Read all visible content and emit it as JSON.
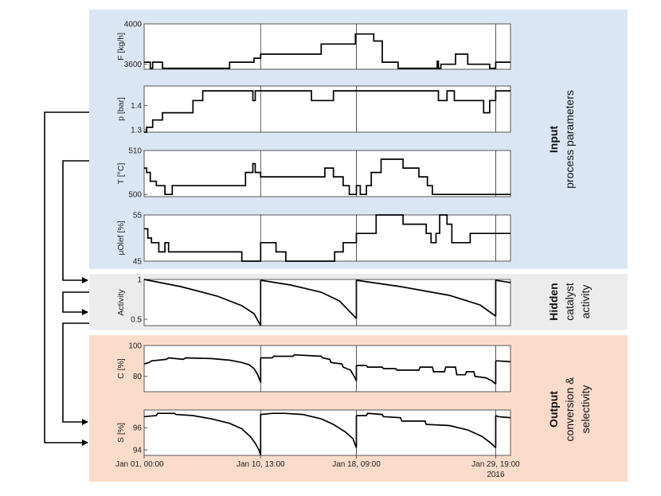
{
  "colors": {
    "input_bg": "#dbe6f4",
    "hidden_bg": "#ececec",
    "output_bg": "#fbdccb",
    "line": "#000000"
  },
  "x_markers": [
    "Jan 10, 13:00",
    "Jan 18, 09:00",
    "Jan 29, 19:00"
  ],
  "x_axis": {
    "domain": [
      0,
      30
    ],
    "tick_labels": [
      {
        "label": "Jan 01, 00:00",
        "day": 0
      },
      {
        "label": "Jan 10, 13:00",
        "day": 9.54
      },
      {
        "label": "Jan 18, 09:00",
        "day": 17.38
      },
      {
        "label": "Jan 29, 19:00",
        "day": 28.79
      }
    ],
    "year_label": "2016"
  },
  "groups": [
    {
      "id": "input",
      "title": "Input",
      "subtitle_lines": [
        "process parameters"
      ]
    },
    {
      "id": "hidden",
      "title": "Hidden",
      "subtitle_lines": [
        "catalyst",
        "activity"
      ]
    },
    {
      "id": "output",
      "title": "Output",
      "subtitle_lines": [
        "conversion &",
        "selectivity"
      ]
    }
  ],
  "chart_data": [
    {
      "type": "line",
      "id": "F",
      "group": "input",
      "ylabel": "F [kg/h]",
      "ylim": [
        3550,
        4000
      ],
      "yticks": [
        3600,
        4000
      ],
      "x": [
        0,
        0.5,
        0.5,
        0.7,
        0.7,
        1.5,
        1.5,
        3.5,
        3.5,
        7,
        7,
        9,
        9,
        9.54,
        9.54,
        14.5,
        14.5,
        17.3,
        17.3,
        17.38,
        17.38,
        18.8,
        18.8,
        19.5,
        19.5,
        20.8,
        20.8,
        24,
        24,
        24.1,
        24.1,
        24.3,
        24.3,
        25.5,
        25.5,
        26.5,
        26.5,
        28.3,
        28.3,
        28.79,
        28.79,
        30
      ],
      "y": [
        3620,
        3620,
        3560,
        3560,
        3620,
        3620,
        3560,
        3560,
        3560,
        3560,
        3620,
        3620,
        3660,
        3660,
        3700,
        3700,
        3800,
        3800,
        3900,
        3900,
        3900,
        3900,
        3830,
        3830,
        3620,
        3620,
        3560,
        3560,
        3630,
        3630,
        3560,
        3560,
        3600,
        3600,
        3700,
        3700,
        3600,
        3600,
        3560,
        3560,
        3620,
        3620
      ]
    },
    {
      "type": "line",
      "id": "p",
      "group": "input",
      "ylabel": "p [bar]",
      "ylim": [
        1.29,
        1.48
      ],
      "yticks": [
        1.3,
        1.4
      ],
      "x": [
        0,
        0.2,
        0.2,
        0.7,
        0.7,
        1.5,
        1.5,
        4,
        4,
        4.8,
        4.8,
        5.7,
        5.7,
        8.9,
        8.9,
        9.1,
        9.1,
        9.54,
        9.54,
        13.7,
        13.7,
        15.5,
        15.5,
        17.38,
        17.38,
        24.1,
        24.1,
        24.8,
        24.8,
        25.4,
        25.4,
        27.8,
        27.8,
        28.3,
        28.3,
        28.79,
        28.79,
        30
      ],
      "y": [
        1.29,
        1.29,
        1.31,
        1.31,
        1.34,
        1.34,
        1.37,
        1.37,
        1.42,
        1.42,
        1.46,
        1.46,
        1.46,
        1.46,
        1.42,
        1.42,
        1.46,
        1.46,
        1.46,
        1.46,
        1.42,
        1.42,
        1.46,
        1.46,
        1.46,
        1.46,
        1.42,
        1.42,
        1.46,
        1.46,
        1.42,
        1.42,
        1.37,
        1.37,
        1.42,
        1.42,
        1.46,
        1.46
      ]
    },
    {
      "type": "line",
      "id": "T",
      "group": "input",
      "ylabel": "T [°C]",
      "ylim": [
        499.5,
        510
      ],
      "yticks": [
        500,
        510
      ],
      "x": [
        0,
        0.2,
        0.2,
        0.5,
        0.5,
        1,
        1,
        1.7,
        1.7,
        2.3,
        2.3,
        2.5,
        2.5,
        8.3,
        8.3,
        8.9,
        8.9,
        9.1,
        9.1,
        9.54,
        9.54,
        14.8,
        14.8,
        15.5,
        15.5,
        16.3,
        16.3,
        16.8,
        16.8,
        17.38,
        17.38,
        17.7,
        17.7,
        18.2,
        18.2,
        18.6,
        18.6,
        19.4,
        19.4,
        21.2,
        21.2,
        22.5,
        22.5,
        23.2,
        23.2,
        23.6,
        23.6,
        30
      ],
      "y": [
        506,
        506,
        505,
        505,
        503,
        503,
        502,
        502,
        500,
        500,
        502,
        502,
        502,
        502,
        505,
        505,
        507,
        507,
        505,
        505,
        504,
        504,
        506,
        506,
        504,
        504,
        502,
        502,
        500,
        500,
        502,
        502,
        500,
        500,
        502,
        502,
        505,
        505,
        508,
        508,
        506,
        506,
        504,
        504,
        502,
        502,
        500,
        500
      ]
    },
    {
      "type": "line",
      "id": "mu",
      "group": "input",
      "ylabel": "μOlef [%]",
      "ylim": [
        45,
        55
      ],
      "yticks": [
        45,
        55
      ],
      "x": [
        0,
        0.3,
        0.3,
        0.6,
        0.6,
        1.2,
        1.2,
        1.7,
        1.7,
        2,
        2,
        2.3,
        2.3,
        8,
        8,
        9.54,
        9.54,
        10.8,
        10.8,
        11.6,
        11.6,
        15.6,
        15.6,
        16.3,
        16.3,
        17.38,
        17.38,
        19,
        19,
        21.2,
        21.2,
        23.1,
        23.1,
        23.5,
        23.5,
        23.9,
        23.9,
        24.2,
        24.2,
        24.8,
        24.8,
        25.2,
        25.2,
        26.7,
        26.7,
        30
      ],
      "y": [
        52,
        52,
        50,
        50,
        49,
        49,
        47,
        47,
        49,
        49,
        47,
        47,
        47,
        47,
        45,
        45,
        49,
        49,
        47,
        47,
        45,
        45,
        47,
        47,
        49,
        49,
        51,
        51,
        55,
        55,
        53,
        53,
        51,
        51,
        49,
        49,
        51,
        51,
        55,
        55,
        53,
        53,
        49,
        49,
        51,
        51
      ]
    },
    {
      "type": "line",
      "id": "activity",
      "group": "hidden",
      "ylabel": "Activity",
      "ylim": [
        0.42,
        1
      ],
      "yticks": [
        0.5,
        1
      ],
      "segments": [
        {
          "x": [
            0,
            3,
            6,
            8,
            9,
            9.54
          ],
          "y": [
            1.0,
            0.91,
            0.79,
            0.67,
            0.57,
            0.42
          ]
        },
        {
          "x": [
            9.54,
            12,
            14.5,
            16,
            17.38
          ],
          "y": [
            0.99,
            0.93,
            0.84,
            0.73,
            0.51
          ]
        },
        {
          "x": [
            17.38,
            21,
            25,
            27.5,
            28.79
          ],
          "y": [
            0.99,
            0.91,
            0.8,
            0.68,
            0.54
          ]
        },
        {
          "x": [
            28.79,
            30
          ],
          "y": [
            0.99,
            0.96
          ]
        }
      ]
    },
    {
      "type": "line",
      "id": "C",
      "group": "output",
      "ylabel": "C [%]",
      "ylim": [
        70,
        100
      ],
      "yticks": [
        80,
        100
      ],
      "segments": [
        {
          "x": [
            0,
            0.4,
            0.6,
            1.8,
            2,
            3.2,
            3.4,
            5.5,
            7,
            8,
            8.6,
            9,
            9.3,
            9.54
          ],
          "y": [
            88,
            89,
            90,
            91,
            92,
            91,
            92,
            91.5,
            90.5,
            89,
            87.5,
            85,
            81,
            76
          ]
        },
        {
          "x": [
            9.54,
            10.5,
            10.6,
            12.2,
            12.3,
            14.5,
            14.6,
            15.2,
            15.3,
            16.2,
            16.3,
            16.9,
            17.2,
            17.38
          ],
          "y": [
            92,
            92,
            93,
            93,
            94,
            93,
            92,
            91,
            89,
            88,
            86,
            84,
            80,
            77
          ]
        },
        {
          "x": [
            17.38,
            18.2,
            18.3,
            19.5,
            19.6,
            20.6,
            20.7,
            22.5,
            22.6,
            23.6,
            23.7,
            24.6,
            24.7,
            25.5,
            25.6,
            26.3,
            26.4,
            27,
            27.1,
            28,
            28.5,
            28.79
          ],
          "y": [
            87,
            87,
            86,
            86,
            85,
            85,
            84,
            84,
            86,
            86,
            83,
            83,
            86,
            86,
            81,
            81,
            83,
            83,
            80,
            79,
            77,
            75
          ]
        },
        {
          "x": [
            28.79,
            29,
            30
          ],
          "y": [
            90,
            90,
            89.5
          ]
        }
      ]
    },
    {
      "type": "line",
      "id": "S",
      "group": "output",
      "ylabel": "S [%]",
      "ylim": [
        93.5,
        97.6
      ],
      "yticks": [
        94,
        96
      ],
      "segments": [
        {
          "x": [
            0,
            1,
            1.1,
            2.5,
            2.6,
            4,
            5.5,
            7,
            8,
            8.7,
            9.1,
            9.4,
            9.54
          ],
          "y": [
            97.0,
            97.1,
            97.3,
            97.3,
            97.2,
            97.1,
            96.8,
            96.4,
            95.9,
            95.2,
            94.6,
            94.0,
            93.5
          ]
        },
        {
          "x": [
            9.54,
            10.5,
            11.5,
            13,
            14.5,
            15.5,
            16.5,
            17.1,
            17.38
          ],
          "y": [
            97.2,
            97.3,
            97.3,
            97.2,
            96.8,
            96.3,
            95.6,
            95.0,
            94.2
          ]
        },
        {
          "x": [
            17.38,
            18.2,
            18.3,
            19.5,
            19.6,
            21,
            21.1,
            23,
            23.1,
            25,
            26.5,
            27.7,
            28.4,
            28.79
          ],
          "y": [
            97.1,
            97.1,
            97.3,
            97.2,
            97.0,
            96.9,
            96.6,
            96.6,
            96.3,
            96.2,
            95.8,
            95.2,
            94.6,
            94.2
          ]
        },
        {
          "x": [
            28.79,
            29,
            30
          ],
          "y": [
            97.1,
            97.0,
            96.9
          ]
        }
      ]
    }
  ]
}
